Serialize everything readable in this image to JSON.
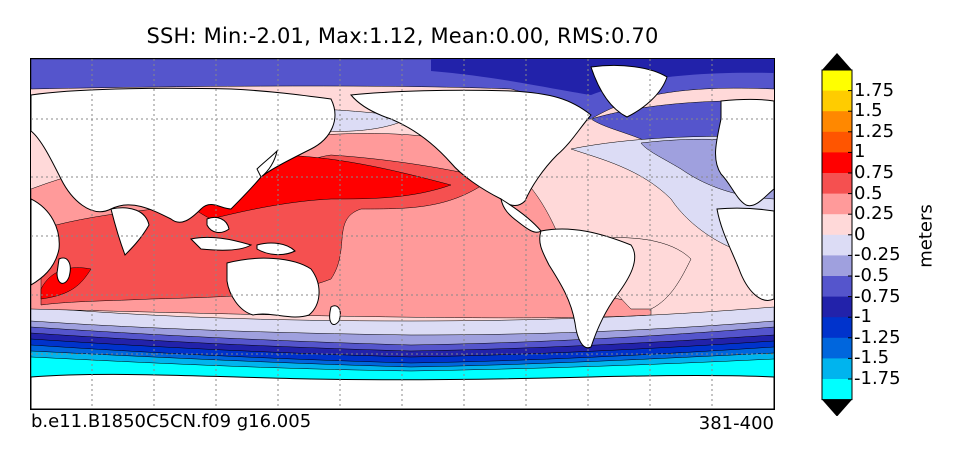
{
  "title": "SSH: Min:-2.01, Max:1.12, Mean:0.00, RMS:0.70",
  "case_name": "b.e11.B1850C5CN.f09 g16.005",
  "years": "381-400",
  "colorbar": {
    "units": "meters",
    "tick_labels": [
      "1.75",
      "1.5",
      "1.25",
      "1",
      "0.75",
      "0.5",
      "0.25",
      "0",
      "-0.25",
      "-0.5",
      "-0.75",
      "-1",
      "-1.25",
      "-1.5",
      "-1.75"
    ],
    "levels": [
      {
        "range": "above 1.75",
        "color": "#ffff00"
      },
      {
        "range": "1.5 to 1.75",
        "color": "#ffcc00"
      },
      {
        "range": "1.25 to 1.5",
        "color": "#ff8800"
      },
      {
        "range": "1 to 1.25",
        "color": "#ff5500"
      },
      {
        "range": "0.75 to 1",
        "color": "#ff0000"
      },
      {
        "range": "0.5 to 0.75",
        "color": "#f55050"
      },
      {
        "range": "0.25 to 0.5",
        "color": "#ff9a9a"
      },
      {
        "range": "0 to 0.25",
        "color": "#ffd9d9"
      },
      {
        "range": "-0.25 to 0",
        "color": "#dcdcf5"
      },
      {
        "range": "-0.5 to -0.25",
        "color": "#9fa0de"
      },
      {
        "range": "-0.75 to -0.5",
        "color": "#5555cc"
      },
      {
        "range": "-1 to -0.75",
        "color": "#2222aa"
      },
      {
        "range": "-1.25 to -1",
        "color": "#0033cc"
      },
      {
        "range": "-1.5 to -1.25",
        "color": "#0066dd"
      },
      {
        "range": "-1.75 to -1.5",
        "color": "#00b4ee"
      },
      {
        "range": "below -1.75",
        "color": "#00ffff"
      }
    ],
    "over_color": "#000000",
    "under_color": "#000000"
  },
  "colors": {
    "land": "#ffffff",
    "coast": "#000000",
    "grid": "#888888"
  }
}
